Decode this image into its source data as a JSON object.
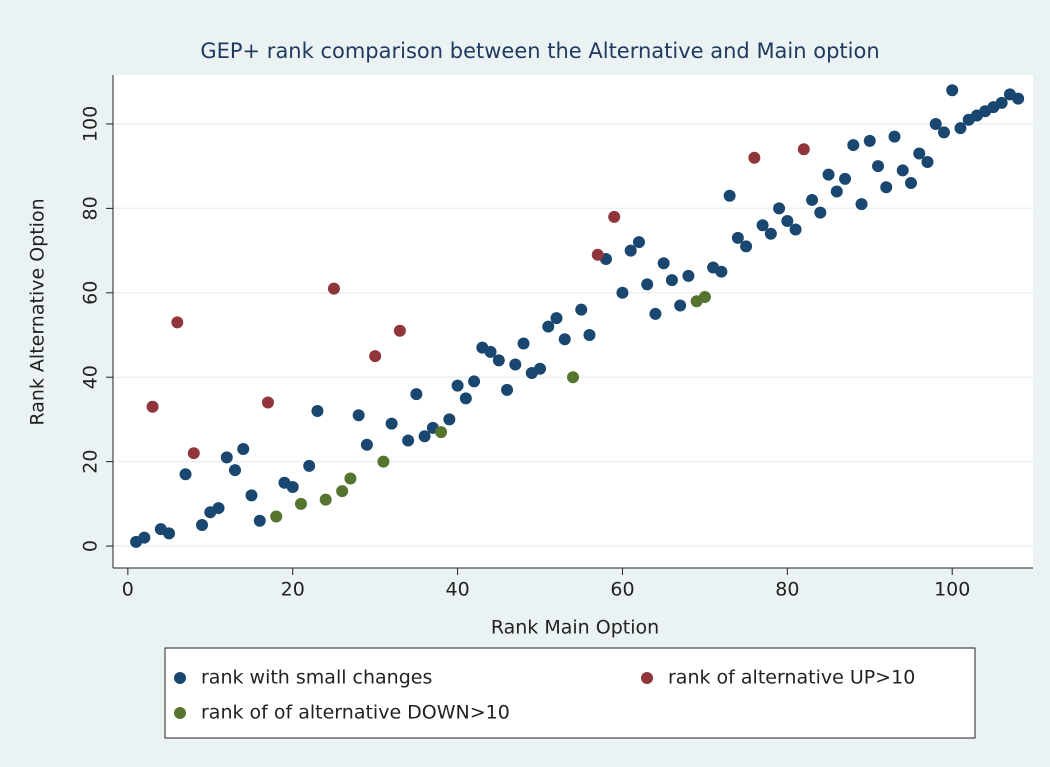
{
  "chart_data": {
    "type": "scatter",
    "title": "GEP+ rank comparison between the Alternative and Main option",
    "x_label": "Rank Main Option",
    "y_label": "Rank Alternative Option",
    "xlim": [
      -1.8,
      109.8
    ],
    "ylim": [
      -5.2,
      111.6
    ],
    "xticks": [
      0,
      20,
      40,
      60,
      80,
      100
    ],
    "yticks": [
      0,
      20,
      40,
      60,
      80,
      100
    ],
    "grid": true,
    "legend": "bottom",
    "series": [
      {
        "name": "rank with small changes",
        "color": "#1a476f",
        "x": [
          1,
          2,
          4,
          5,
          7,
          9,
          10,
          11,
          12,
          13,
          14,
          15,
          16,
          19,
          20,
          22,
          23,
          28,
          29,
          32,
          34,
          35,
          36,
          37,
          39,
          40,
          41,
          42,
          43,
          44,
          45,
          46,
          47,
          48,
          49,
          50,
          51,
          52,
          53,
          55,
          56,
          58,
          60,
          61,
          62,
          63,
          64,
          65,
          66,
          67,
          68,
          71,
          72,
          73,
          74,
          75,
          77,
          78,
          79,
          80,
          81,
          83,
          84,
          85,
          86,
          87,
          88,
          89,
          90,
          91,
          92,
          93,
          94,
          95,
          96,
          97,
          98,
          99,
          100,
          101,
          102,
          103,
          104,
          105,
          106,
          107,
          108
        ],
        "values": [
          1,
          2,
          4,
          3,
          17,
          5,
          8,
          9,
          21,
          18,
          23,
          12,
          6,
          15,
          14,
          19,
          32,
          31,
          24,
          29,
          25,
          36,
          26,
          28,
          30,
          38,
          35,
          39,
          47,
          46,
          44,
          37,
          43,
          48,
          41,
          42,
          52,
          54,
          49,
          56,
          50,
          68,
          60,
          70,
          72,
          62,
          55,
          67,
          63,
          57,
          64,
          66,
          65,
          83,
          73,
          71,
          76,
          74,
          80,
          77,
          75,
          82,
          79,
          88,
          84,
          87,
          95,
          81,
          96,
          90,
          85,
          97,
          89,
          86,
          93,
          91,
          100,
          98,
          108,
          99,
          101,
          102,
          103,
          104,
          105,
          107,
          106
        ]
      },
      {
        "name": "rank of alternative UP>10",
        "color": "#90353b",
        "x": [
          3,
          6,
          8,
          17,
          25,
          30,
          33,
          57,
          59,
          76,
          82
        ],
        "values": [
          33,
          53,
          22,
          34,
          61,
          45,
          51,
          69,
          78,
          92,
          94
        ]
      },
      {
        "name": "rank of of alternative DOWN>10",
        "color": "#55752f",
        "x": [
          18,
          21,
          24,
          26,
          27,
          31,
          38,
          54,
          69,
          70
        ],
        "values": [
          7,
          10,
          11,
          13,
          16,
          20,
          27,
          40,
          58,
          59
        ]
      }
    ]
  }
}
